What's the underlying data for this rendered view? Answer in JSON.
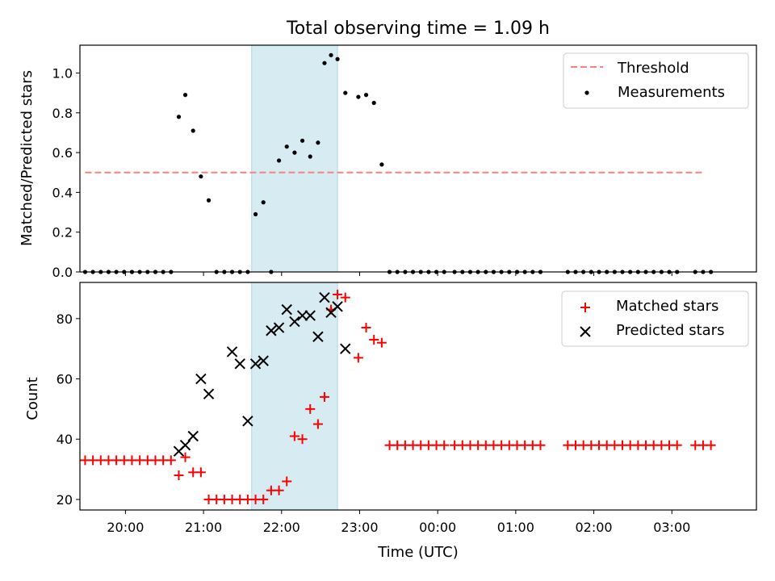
{
  "chart_data": [
    {
      "type": "scatter",
      "title": "Total observing time = 1.09 h",
      "xlabel": "",
      "ylabel": "Matched/Predicted stars",
      "xlim": [
        "19:25",
        "04:05"
      ],
      "ylim": [
        0,
        1.14
      ],
      "yticks": [
        0.0,
        0.2,
        0.4,
        0.6,
        0.8,
        1.0
      ],
      "yticklabels": [
        "0.0",
        "0.2",
        "0.4",
        "0.6",
        "0.8",
        "1.0"
      ],
      "shaded_span": [
        "21:37",
        "22:43"
      ],
      "legend_position": "upper right",
      "threshold": {
        "name": "Threshold",
        "y": 0.5,
        "x": [
          "19:29",
          "03:25"
        ],
        "color": "#ff7f7f"
      },
      "series": [
        {
          "name": "Measurements",
          "color": "#000000",
          "x": [
            "19:29",
            "19:35",
            "19:41",
            "19:47",
            "19:53",
            "19:59",
            "20:05",
            "20:11",
            "20:17",
            "20:23",
            "20:29",
            "20:35",
            "20:41",
            "20:46",
            "20:52",
            "20:58",
            "21:04",
            "21:10",
            "21:16",
            "21:22",
            "21:28",
            "21:34",
            "21:40",
            "21:46",
            "21:52",
            "21:58",
            "22:04",
            "22:10",
            "22:16",
            "22:22",
            "22:28",
            "22:33",
            "22:38",
            "22:43",
            "22:49",
            "22:59",
            "23:05",
            "23:11",
            "23:17",
            "23:23",
            "23:29",
            "23:35",
            "23:41",
            "23:47",
            "23:53",
            "23:59",
            "00:05",
            "00:13",
            "00:19",
            "00:25",
            "00:31",
            "00:37",
            "00:43",
            "00:49",
            "00:55",
            "01:01",
            "01:07",
            "01:13",
            "01:19",
            "01:40",
            "01:46",
            "01:52",
            "01:58",
            "02:04",
            "02:10",
            "02:16",
            "02:22",
            "02:28",
            "02:34",
            "02:40",
            "02:46",
            "02:52",
            "02:58",
            "03:04",
            "03:18",
            "03:24",
            "03:30"
          ],
          "y": [
            0.0,
            0.0,
            0.0,
            0.0,
            0.0,
            0.0,
            0.0,
            0.0,
            0.0,
            0.0,
            0.0,
            0.0,
            0.78,
            0.89,
            0.71,
            0.48,
            0.36,
            0.0,
            0.0,
            0.0,
            0.0,
            0.0,
            0.29,
            0.35,
            0.0,
            0.56,
            0.63,
            0.6,
            0.66,
            0.58,
            0.65,
            1.05,
            1.09,
            1.07,
            0.9,
            0.88,
            0.89,
            0.85,
            0.54,
            0.0,
            0.0,
            0.0,
            0.0,
            0.0,
            0.0,
            0.0,
            0.0,
            0.0,
            0.0,
            0.0,
            0.0,
            0.0,
            0.0,
            0.0,
            0.0,
            0.0,
            0.0,
            0.0,
            0.0,
            0.0,
            0.0,
            0.0,
            0.0,
            0.0,
            0.0,
            0.0,
            0.0,
            0.0,
            0.0,
            0.0,
            0.0,
            0.0,
            0.0,
            0.0,
            0.0,
            0.0,
            0.0
          ]
        }
      ]
    },
    {
      "type": "scatter",
      "title": "",
      "xlabel": "Time (UTC)",
      "ylabel": "Count",
      "xlim": [
        "19:25",
        "04:05"
      ],
      "ylim": [
        16.5,
        92
      ],
      "yticks": [
        20,
        40,
        60,
        80
      ],
      "yticklabels": [
        "20",
        "40",
        "60",
        "80"
      ],
      "xticks": [
        "20:00",
        "21:00",
        "22:00",
        "23:00",
        "00:00",
        "01:00",
        "02:00",
        "03:00"
      ],
      "shaded_span": [
        "21:37",
        "22:43"
      ],
      "legend_position": "upper right",
      "series": [
        {
          "name": "Matched stars",
          "marker": "plus",
          "color": "#ff0000",
          "x": [
            "19:29",
            "19:35",
            "19:41",
            "19:47",
            "19:53",
            "19:59",
            "20:05",
            "20:11",
            "20:17",
            "20:23",
            "20:29",
            "20:35",
            "20:41",
            "20:46",
            "20:52",
            "20:58",
            "21:04",
            "21:10",
            "21:16",
            "21:22",
            "21:28",
            "21:34",
            "21:40",
            "21:46",
            "21:52",
            "21:58",
            "22:04",
            "22:10",
            "22:16",
            "22:22",
            "22:28",
            "22:33",
            "22:38",
            "22:43",
            "22:49",
            "22:59",
            "23:05",
            "23:11",
            "23:17",
            "23:23",
            "23:29",
            "23:35",
            "23:41",
            "23:47",
            "23:53",
            "23:59",
            "00:05",
            "00:13",
            "00:19",
            "00:25",
            "00:31",
            "00:37",
            "00:43",
            "00:49",
            "00:55",
            "01:01",
            "01:07",
            "01:13",
            "01:19",
            "01:40",
            "01:46",
            "01:52",
            "01:58",
            "02:04",
            "02:10",
            "02:16",
            "02:22",
            "02:28",
            "02:34",
            "02:40",
            "02:46",
            "02:52",
            "02:58",
            "03:04",
            "03:18",
            "03:24",
            "03:30"
          ],
          "y": [
            33,
            33,
            33,
            33,
            33,
            33,
            33,
            33,
            33,
            33,
            33,
            33,
            28,
            34,
            29,
            29,
            20,
            20,
            20,
            20,
            20,
            20,
            20,
            20,
            23,
            23,
            26,
            41,
            40,
            50,
            45,
            54,
            83,
            88,
            87,
            67,
            77,
            73,
            72,
            38,
            38,
            38,
            38,
            38,
            38,
            38,
            38,
            38,
            38,
            38,
            38,
            38,
            38,
            38,
            38,
            38,
            38,
            38,
            38,
            38,
            38,
            38,
            38,
            38,
            38,
            38,
            38,
            38,
            38,
            38,
            38,
            38,
            38,
            38,
            38,
            38,
            38
          ]
        },
        {
          "name": "Predicted stars",
          "marker": "x",
          "color": "#000000",
          "x": [
            "20:41",
            "20:46",
            "20:52",
            "20:58",
            "21:04",
            "21:22",
            "21:28",
            "21:34",
            "21:40",
            "21:46",
            "21:52",
            "21:58",
            "22:04",
            "22:10",
            "22:16",
            "22:22",
            "22:28",
            "22:33",
            "22:38",
            "22:43",
            "22:49"
          ],
          "y": [
            36,
            38,
            41,
            60,
            55,
            69,
            65,
            46,
            65,
            66,
            76,
            77,
            83,
            79,
            81,
            81,
            74,
            87,
            82,
            84,
            70
          ]
        }
      ]
    }
  ]
}
